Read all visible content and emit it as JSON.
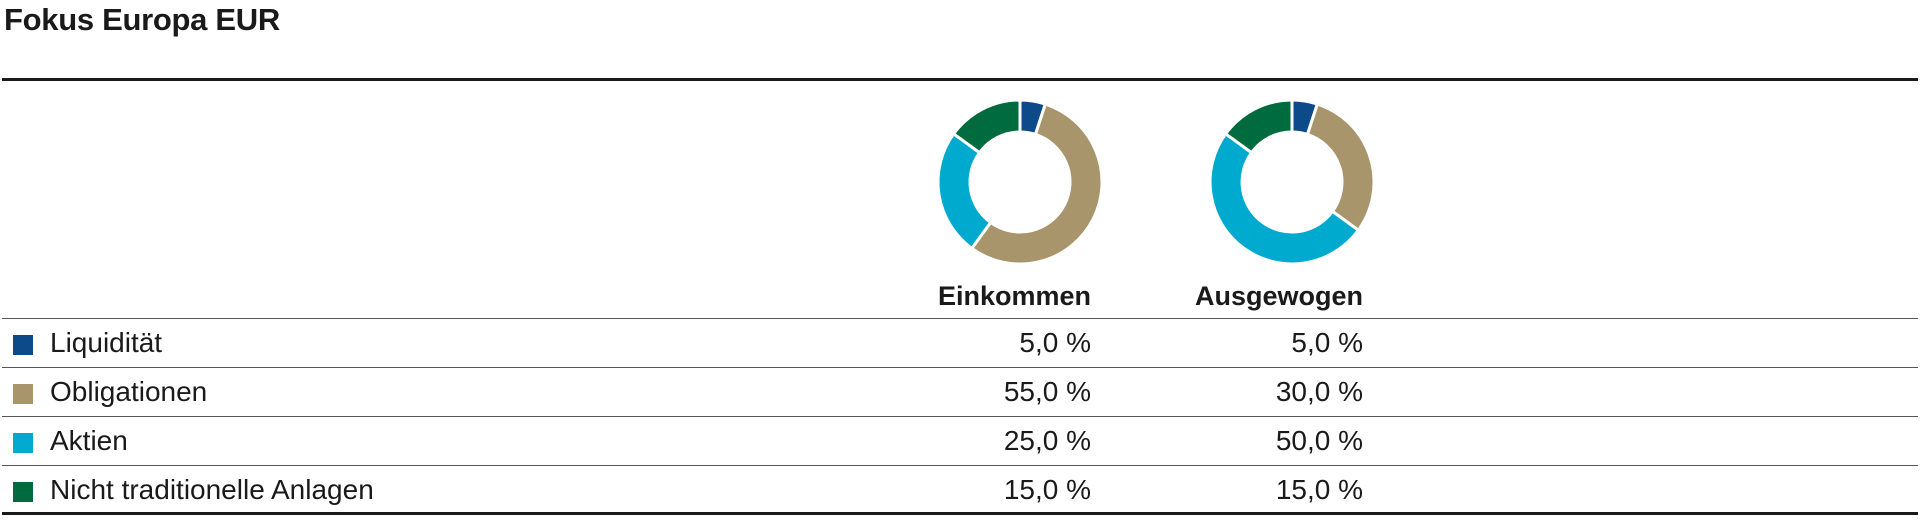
{
  "title": "Fokus Europa EUR",
  "columns": [
    "Einkommen",
    "Ausgewogen"
  ],
  "rows": [
    {
      "label": "Liquidität",
      "color": "#0d4a8a",
      "values": [
        "5,0 %",
        "5,0 %"
      ]
    },
    {
      "label": "Obligationen",
      "color": "#a8956b",
      "values": [
        "55,0 %",
        "30,0 %"
      ]
    },
    {
      "label": "Aktien",
      "color": "#00a9ce",
      "values": [
        "25,0 %",
        "50,0 %"
      ]
    },
    {
      "label": "Nicht traditionelle Anlagen",
      "color": "#006b3f",
      "values": [
        "15,0 %",
        "15,0 %"
      ]
    }
  ],
  "chart_data": [
    {
      "type": "pie",
      "title": "Einkommen",
      "categories": [
        "Liquidität",
        "Obligationen",
        "Aktien",
        "Nicht traditionelle Anlagen"
      ],
      "values": [
        5,
        55,
        25,
        15
      ],
      "colors": [
        "#0d4a8a",
        "#a8956b",
        "#00a9ce",
        "#006b3f"
      ]
    },
    {
      "type": "pie",
      "title": "Ausgewogen",
      "categories": [
        "Liquidität",
        "Obligationen",
        "Aktien",
        "Nicht traditionelle Anlagen"
      ],
      "values": [
        5,
        30,
        50,
        15
      ],
      "colors": [
        "#0d4a8a",
        "#a8956b",
        "#00a9ce",
        "#006b3f"
      ]
    }
  ]
}
